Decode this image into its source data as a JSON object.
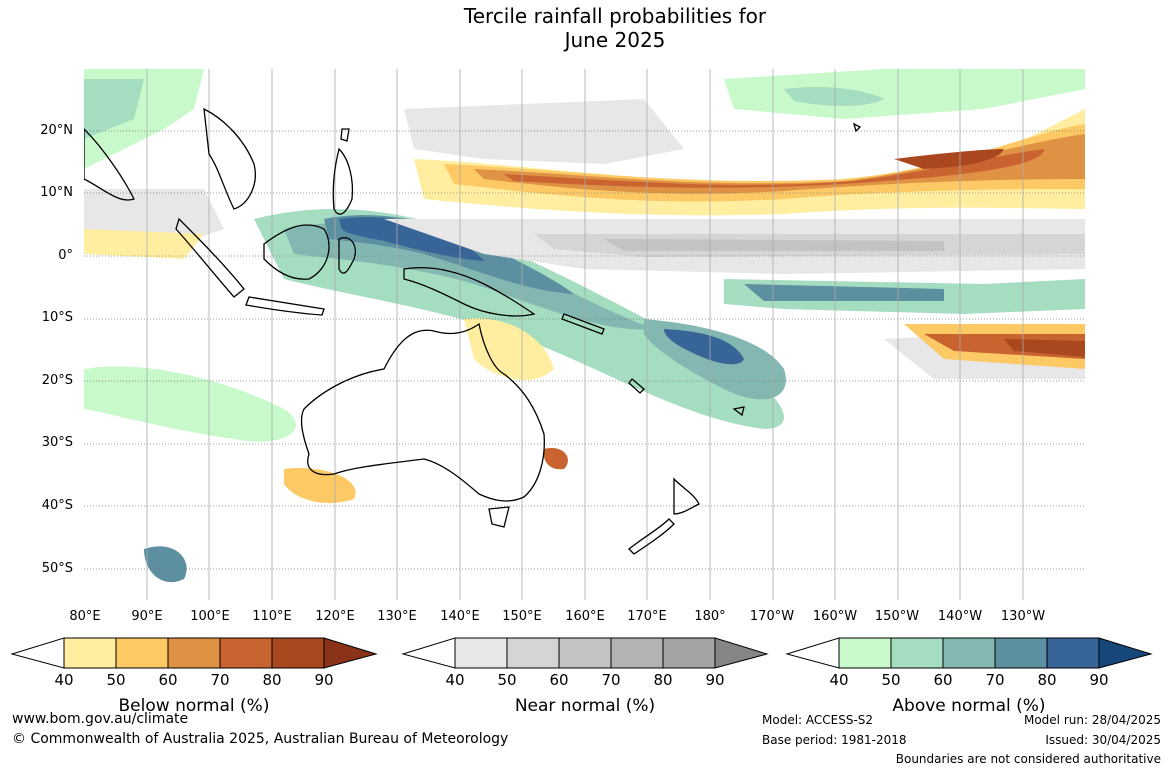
{
  "title_line1": "Tercile rainfall probabilities for",
  "title_line2": "June 2025",
  "latitude_labels": [
    "20°N",
    "10°N",
    "0°",
    "10°S",
    "20°S",
    "30°S",
    "40°S",
    "50°S"
  ],
  "longitude_labels": [
    "80°E",
    "90°E",
    "100°E",
    "110°E",
    "120°E",
    "130°E",
    "140°E",
    "150°E",
    "160°E",
    "170°E",
    "180°",
    "170°W",
    "160°W",
    "150°W",
    "140°W",
    "130°W"
  ],
  "colorbars": [
    {
      "label": "Below normal (%)",
      "ticks": [
        "40",
        "50",
        "60",
        "70",
        "80",
        "90"
      ],
      "colors": [
        "#ffeea0",
        "#fdc964",
        "#df9144",
        "#c96431",
        "#a9471e"
      ],
      "extend_color": "#8a3318"
    },
    {
      "label": "Near normal (%)",
      "ticks": [
        "40",
        "50",
        "60",
        "70",
        "80",
        "90"
      ],
      "colors": [
        "#e7e7e7",
        "#d5d5d5",
        "#c3c3c3",
        "#b3b3b3",
        "#a3a3a3"
      ],
      "extend_color": "#858585"
    },
    {
      "label": "Above normal (%)",
      "ticks": [
        "40",
        "50",
        "60",
        "70",
        "80",
        "90"
      ],
      "colors": [
        "#c8f9ca",
        "#a5ddc0",
        "#83b8b2",
        "#5c8fa0",
        "#386597"
      ],
      "extend_color": "#16467a"
    }
  ],
  "footer": {
    "website": "www.bom.gov.au/climate",
    "copyright": "© Commonwealth of Australia 2025, Australian Bureau of Meteorology",
    "model": "Model: ACCESS-S2",
    "base_period": "Base period: 1981-2018",
    "model_run": "Model run: 28/04/2025",
    "issued": "Issued: 30/04/2025",
    "disclaimer": "Boundaries are not considered authoritative"
  }
}
